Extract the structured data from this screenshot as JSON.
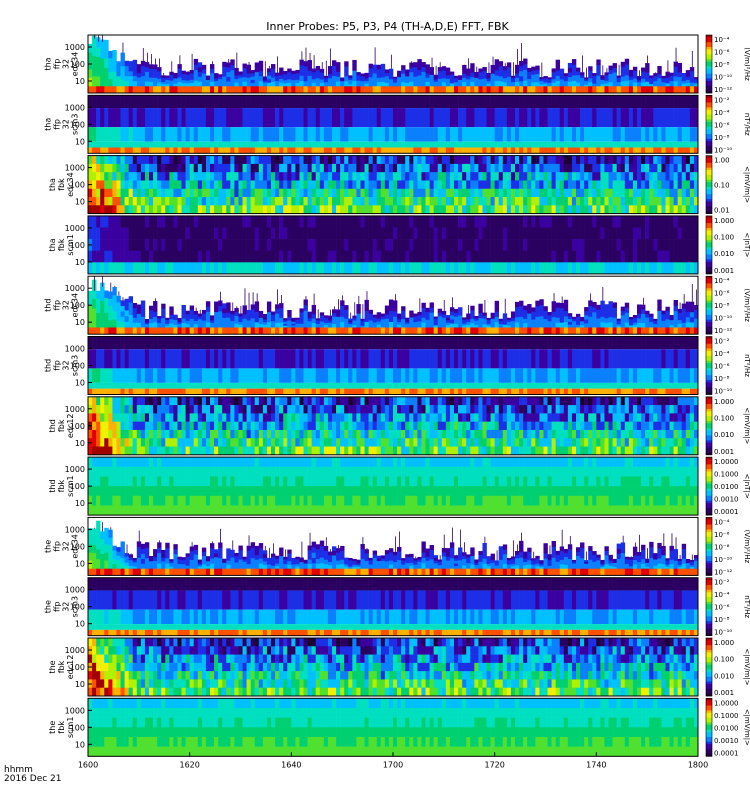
{
  "chart_data": {
    "type": "heatmap",
    "title": "Inner Probes: P5, P3, P4 (TH-A,D,E) FFT, FBK",
    "xlabel": "hhmm",
    "date_label": "2016 Dec 21",
    "x_ticks": [
      "1600",
      "1620",
      "1640",
      "1700",
      "1720",
      "1740",
      "1800"
    ],
    "y_ticks": [
      "1000",
      "100",
      "10"
    ],
    "panels": [
      {
        "name": "tha-ffp32-edc34",
        "ylabel": [
          "tha",
          "ffp",
          "32",
          "edc34"
        ],
        "kind": "ffp_e",
        "cb_unit": "(V/m)²/Hz",
        "cb_ticks": [
          "10⁻⁴",
          "10⁻⁶",
          "10⁻⁸",
          "10⁻¹⁰",
          "10⁻¹²"
        ]
      },
      {
        "name": "tha-ffp32-scm3",
        "ylabel": [
          "tha",
          "ffp",
          "32",
          "scm3"
        ],
        "kind": "ffp_b",
        "cb_unit": "nT²/Hz",
        "cb_ticks": [
          "10⁻²",
          "10⁻⁴",
          "10⁻⁶",
          "10⁻⁸",
          "10⁻¹⁰"
        ]
      },
      {
        "name": "tha-fbk-edc34",
        "ylabel": [
          "tha",
          "fbk",
          "edc34"
        ],
        "kind": "fbk_e",
        "cb_unit": "<|mV/m|>",
        "cb_ticks": [
          "1.00",
          "0.10",
          "0.01"
        ]
      },
      {
        "name": "tha-fbk-scm1",
        "ylabel": [
          "tha",
          "fbk",
          "scm1"
        ],
        "kind": "fbk_b",
        "cb_unit": "<|nT|>",
        "cb_ticks": [
          "1.000",
          "0.100",
          "0.010",
          "0.001"
        ]
      },
      {
        "name": "thd-ffp32-edc34",
        "ylabel": [
          "thd",
          "ffp",
          "32",
          "edc34"
        ],
        "kind": "ffp_e",
        "cb_unit": "(V/m)²/Hz",
        "cb_ticks": [
          "10⁻⁴",
          "10⁻⁶",
          "10⁻⁸",
          "10⁻¹⁰",
          "10⁻¹²"
        ]
      },
      {
        "name": "thd-ffp32-scm3",
        "ylabel": [
          "thd",
          "ffp",
          "32",
          "scm3"
        ],
        "kind": "ffp_b",
        "cb_unit": "nT²/Hz",
        "cb_ticks": [
          "10⁻²",
          "10⁻⁴",
          "10⁻⁶",
          "10⁻⁸",
          "10⁻¹⁰"
        ]
      },
      {
        "name": "thd-fbk-edc12",
        "ylabel": [
          "thd",
          "fbk",
          "edc12"
        ],
        "kind": "fbk_e",
        "cb_unit": "<|mV/m|>",
        "cb_ticks": [
          "1.000",
          "0.100",
          "0.010",
          "0.001"
        ]
      },
      {
        "name": "thd-fbk-scm1",
        "ylabel": [
          "thd",
          "fbk",
          "scm1"
        ],
        "kind": "fbk_b2",
        "cb_unit": "<|nT|>",
        "cb_ticks": [
          "1.0000",
          "0.1000",
          "0.0100",
          "0.0010",
          "0.0001"
        ]
      },
      {
        "name": "the-ffp32-edc34",
        "ylabel": [
          "the",
          "ffp",
          "32",
          "edc34"
        ],
        "kind": "ffp_e",
        "cb_unit": "(V/m)²/Hz",
        "cb_ticks": [
          "10⁻⁴",
          "10⁻⁶",
          "10⁻⁸",
          "10⁻¹⁰",
          "10⁻¹²"
        ]
      },
      {
        "name": "the-ffp32-scm3",
        "ylabel": [
          "the",
          "ffp",
          "32",
          "scm3"
        ],
        "kind": "ffp_b",
        "cb_unit": "nT²/Hz",
        "cb_ticks": [
          "10⁻²",
          "10⁻⁴",
          "10⁻⁶",
          "10⁻⁸",
          "10⁻¹⁰"
        ]
      },
      {
        "name": "the-fbk-edc12",
        "ylabel": [
          "the",
          "fbk",
          "edc12"
        ],
        "kind": "fbk_e",
        "cb_unit": "<|mV/m|>",
        "cb_ticks": [
          "1.000",
          "0.100",
          "0.010",
          "0.001"
        ]
      },
      {
        "name": "the-fbk-scm1",
        "ylabel": [
          "the",
          "fbk",
          "scm1"
        ],
        "kind": "fbk_b2",
        "cb_unit": "<|mV/m|>",
        "cb_ticks": [
          "1.0000",
          "0.1000",
          "0.0100",
          "0.0010",
          "0.0001"
        ]
      }
    ]
  },
  "colors": {
    "palette": [
      "#1a0033",
      "#2a0060",
      "#3a00a0",
      "#1c2ee6",
      "#0a80ff",
      "#00c0ff",
      "#00e0c0",
      "#00d070",
      "#50e030",
      "#b0f000",
      "#f0f000",
      "#ffb000",
      "#ff5000",
      "#e00000",
      "#a00000"
    ]
  }
}
